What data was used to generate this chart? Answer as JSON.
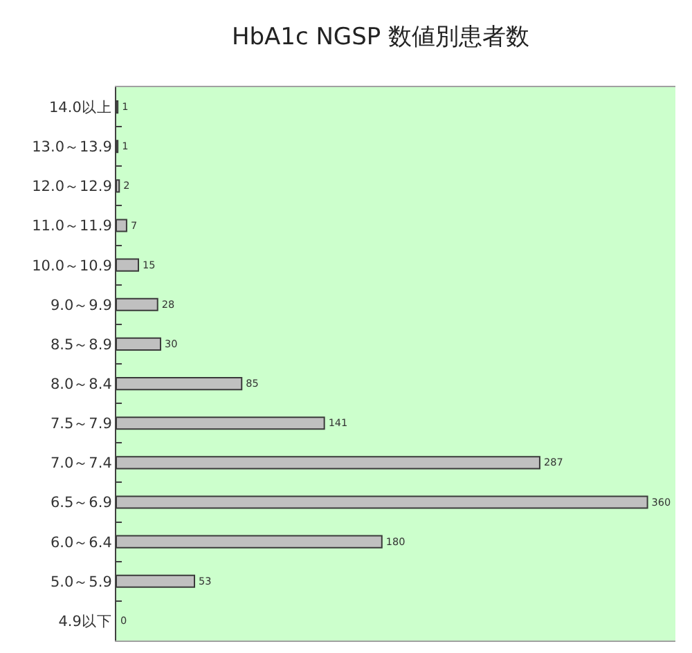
{
  "chart_data": {
    "type": "bar",
    "orientation": "horizontal",
    "title": "HbA1c NGSP 数値別患者数",
    "categories": [
      "14.0以上",
      "13.0～13.9",
      "12.0～12.9",
      "11.0～11.9",
      "10.0～10.9",
      "9.0～9.9",
      "8.5～8.9",
      "8.0～8.4",
      "7.5～7.9",
      "7.0～7.4",
      "6.5～6.9",
      "6.0～6.4",
      "5.0～5.9",
      "4.9以下"
    ],
    "values": [
      1,
      1,
      2,
      7,
      15,
      28,
      30,
      85,
      141,
      287,
      360,
      180,
      53,
      0
    ],
    "color": "#c0c0c0",
    "data_labels": true
  }
}
